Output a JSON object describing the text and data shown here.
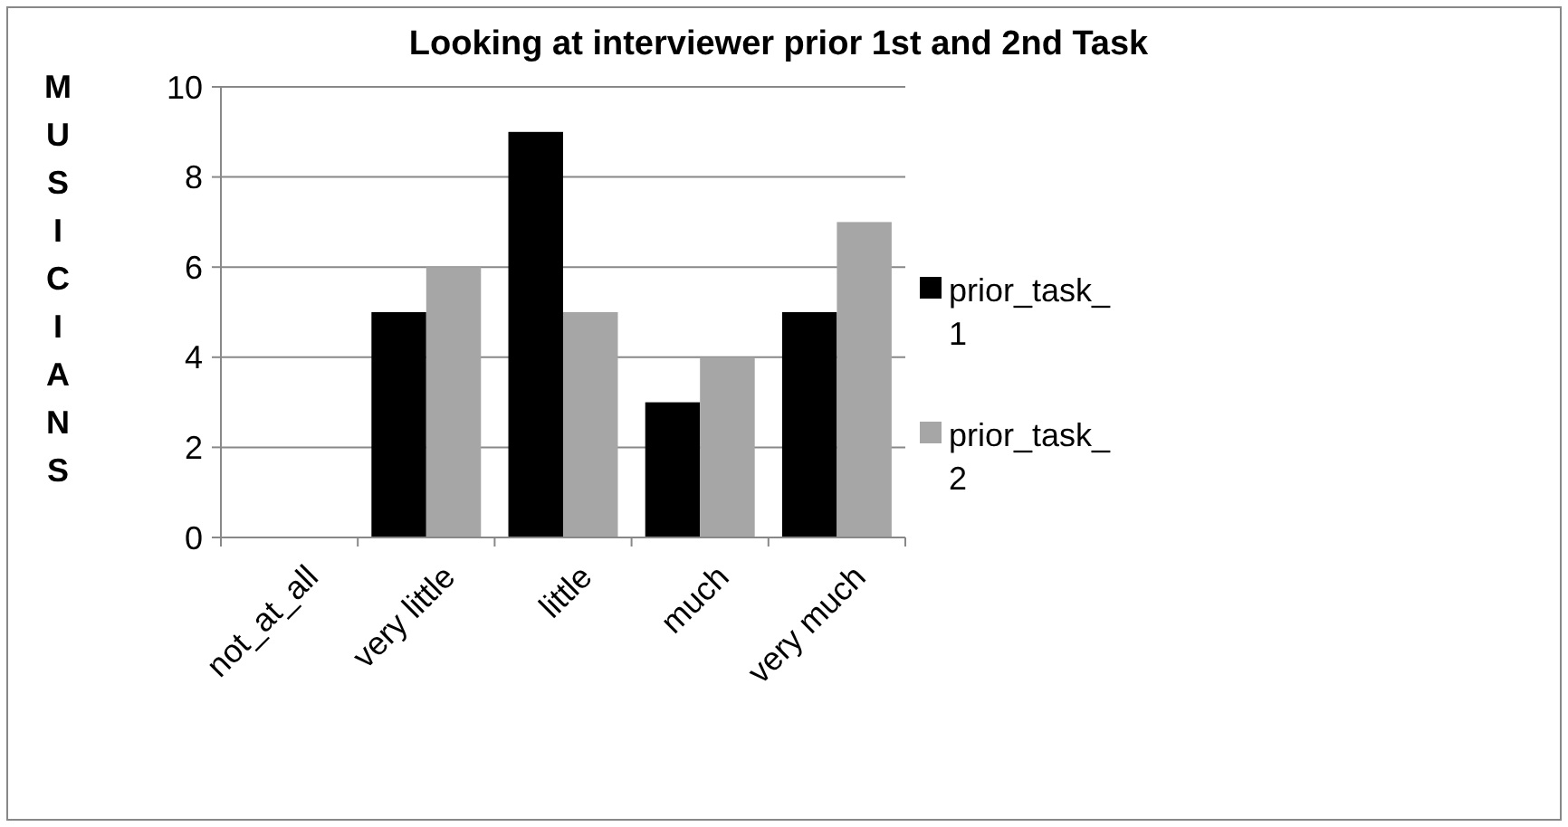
{
  "chart_data": {
    "type": "bar",
    "title": "Looking at interviewer prior 1st and 2nd Task",
    "ylabel": "MUSICIANS",
    "categories": [
      "not_at_all",
      "very little",
      "little",
      "much",
      "very much"
    ],
    "series": [
      {
        "name": "prior_task_1",
        "color": "#000000",
        "values": [
          0,
          5,
          9,
          3,
          5
        ]
      },
      {
        "name": "prior_task_2",
        "color": "#a6a6a6",
        "values": [
          0,
          6,
          5,
          4,
          7
        ]
      }
    ],
    "ylim": [
      0,
      10
    ],
    "yticks": [
      0,
      2,
      4,
      6,
      8,
      10
    ],
    "grid": "y",
    "legend": "right"
  }
}
